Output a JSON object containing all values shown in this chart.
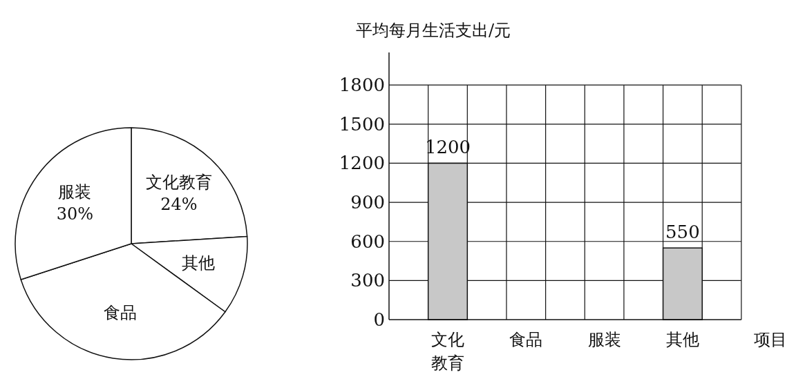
{
  "chart_data": [
    {
      "type": "pie",
      "categories": [
        "文化教育",
        "其他",
        "食品",
        "服装"
      ],
      "values": [
        24,
        11,
        35,
        30
      ],
      "colors": [
        "#ffffff",
        "#ffffff",
        "#ffffff",
        "#ffffff"
      ],
      "value_labels": [
        "24%",
        null,
        null,
        "30%"
      ]
    },
    {
      "type": "bar",
      "ylabel": "平均每月生活支出/元",
      "xlabel": "项目",
      "categories": [
        "文化教育",
        "食品",
        "服装",
        "其他"
      ],
      "values": [
        1200,
        null,
        null,
        550
      ],
      "color": "#c8c8c8",
      "ylim": [
        0,
        2050
      ],
      "yticks": [
        0,
        300,
        600,
        900,
        1200,
        1500,
        1800
      ],
      "grid": true,
      "data_labels": true
    }
  ]
}
